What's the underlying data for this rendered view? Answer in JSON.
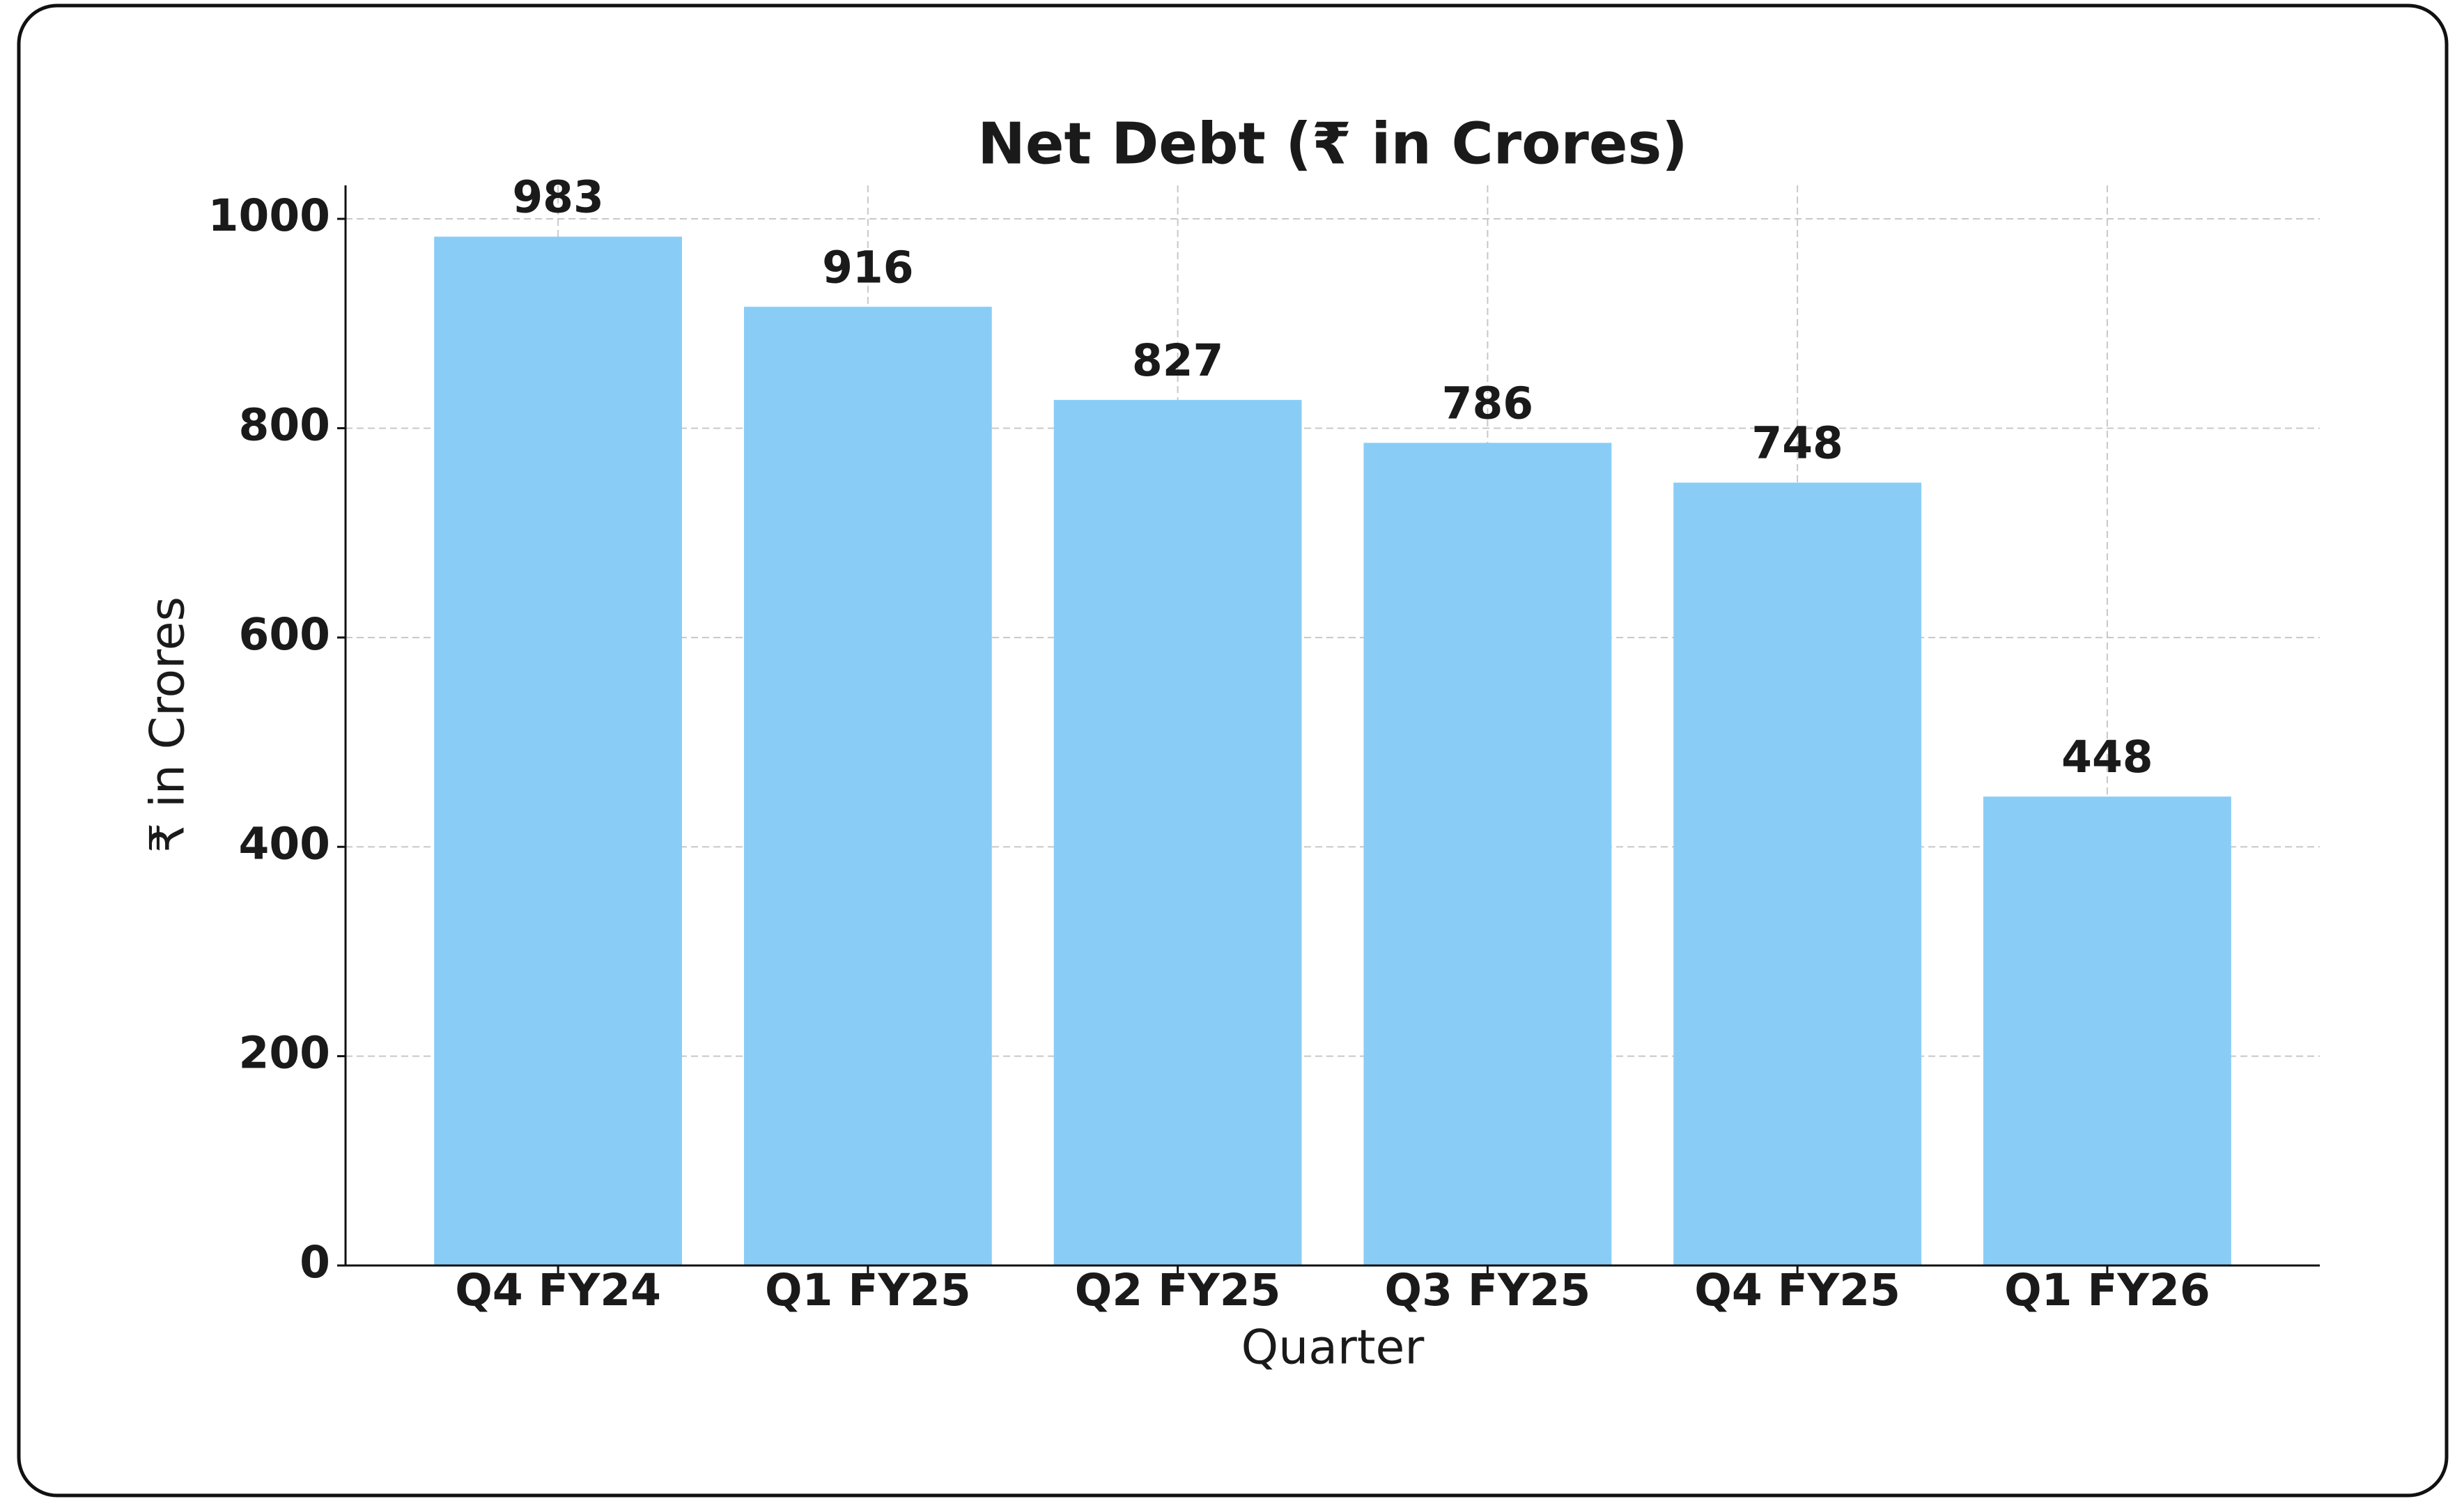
{
  "chart_data": {
    "type": "bar",
    "title": "Net Debt (₹ in Crores)",
    "xlabel": "Quarter",
    "ylabel": "₹ in Crores",
    "categories": [
      "Q4 FY24",
      "Q1 FY25",
      "Q2 FY25",
      "Q3 FY25",
      "Q4 FY25",
      "Q1 FY26"
    ],
    "values": [
      983,
      916,
      827,
      786,
      748,
      448
    ],
    "color": "#89cdf7",
    "ylim": [
      0,
      1032
    ],
    "yticks": [
      0,
      200,
      400,
      600,
      800,
      1000
    ],
    "grid": true
  }
}
